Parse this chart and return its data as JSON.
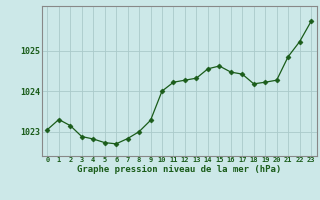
{
  "hours": [
    0,
    1,
    2,
    3,
    4,
    5,
    6,
    7,
    8,
    9,
    10,
    11,
    12,
    13,
    14,
    15,
    16,
    17,
    18,
    19,
    20,
    21,
    22,
    23
  ],
  "pressure": [
    1023.05,
    1023.3,
    1023.15,
    1022.88,
    1022.82,
    1022.73,
    1022.7,
    1022.83,
    1023.0,
    1023.28,
    1024.0,
    1024.22,
    1024.27,
    1024.32,
    1024.55,
    1024.62,
    1024.47,
    1024.42,
    1024.18,
    1024.22,
    1024.27,
    1024.85,
    1025.22,
    1025.72
  ],
  "line_color": "#1a5c1a",
  "marker_color": "#1a5c1a",
  "bg_color": "#cce8e8",
  "grid_color": "#aacaca",
  "xlabel": "Graphe pression niveau de la mer (hPa)",
  "xlabel_color": "#1a5c1a",
  "tick_color": "#1a5c1a",
  "ylim": [
    1022.4,
    1026.1
  ],
  "yticks": [
    1023,
    1024,
    1025
  ],
  "spine_color": "#888888"
}
